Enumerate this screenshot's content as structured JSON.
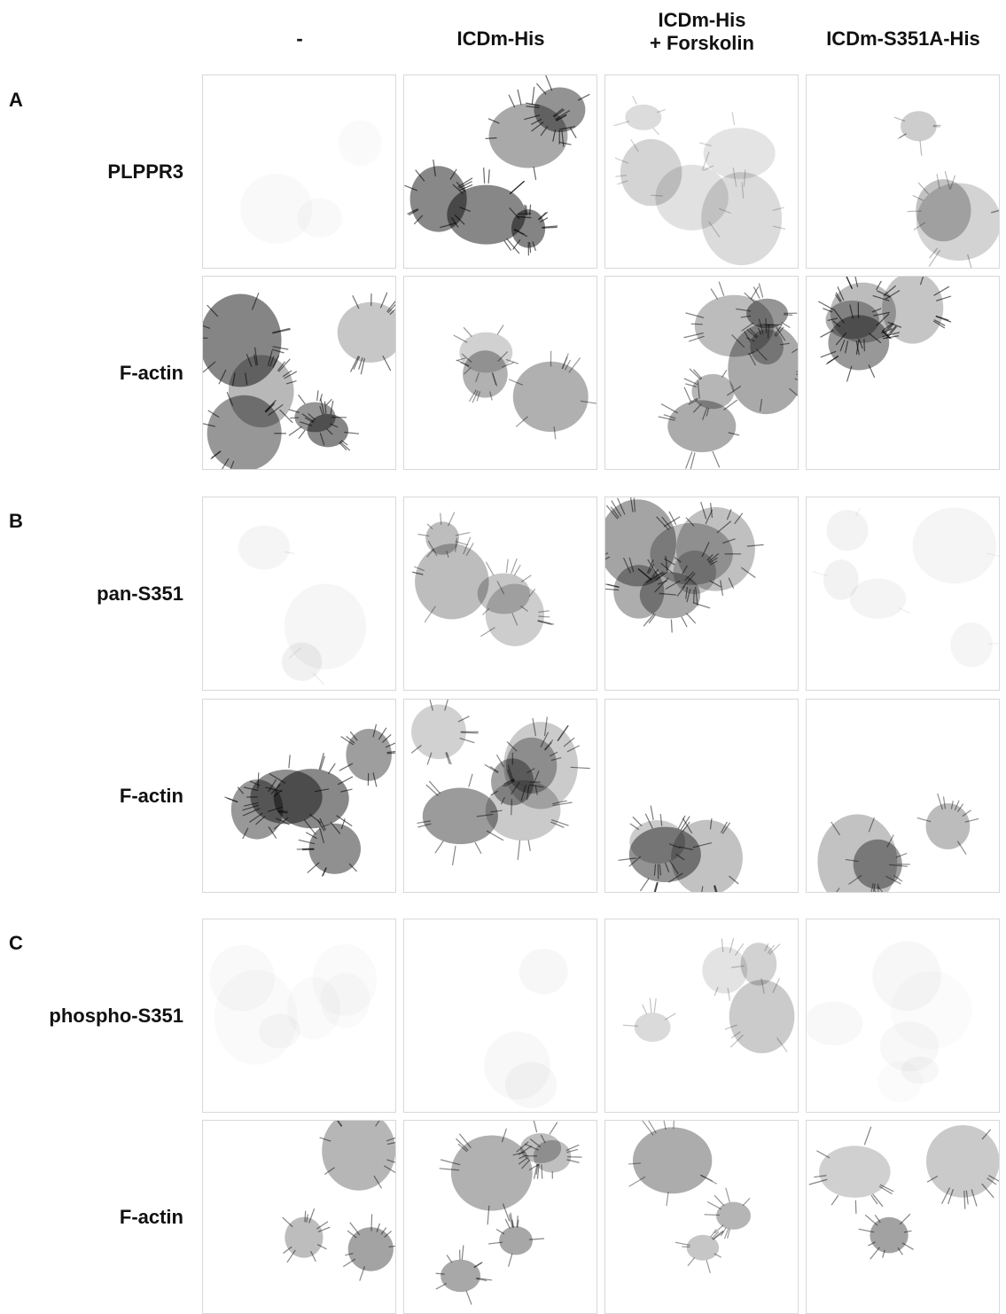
{
  "columns": [
    "-",
    "ICDm-His",
    [
      "ICDm-His",
      "+ Forskolin"
    ],
    "ICDm-S351A-His"
  ],
  "sections": [
    {
      "letter": "A",
      "rows": [
        "PLPPR3",
        "F-actin"
      ]
    },
    {
      "letter": "B",
      "rows": [
        "pan-S351",
        "F-actin"
      ]
    },
    {
      "letter": "C",
      "rows": [
        "phospho-S351",
        "F-actin"
      ]
    }
  ]
}
